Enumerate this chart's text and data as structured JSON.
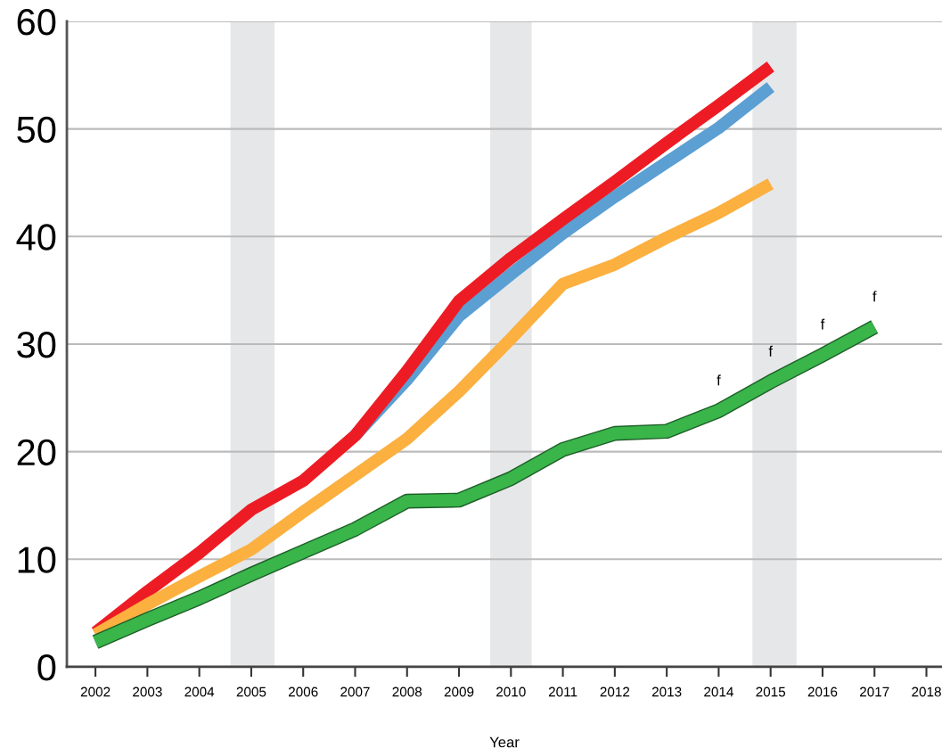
{
  "chart_data": {
    "type": "line",
    "xlabel": "Year",
    "x": [
      2002,
      2003,
      2004,
      2005,
      2006,
      2007,
      2008,
      2009,
      2010,
      2011,
      2012,
      2013,
      2014,
      2015,
      2016,
      2017
    ],
    "series": [
      {
        "color": "#5b9fd3",
        "values": [
          null,
          null,
          null,
          null,
          null,
          21.5,
          26.7,
          32.6,
          36.5,
          40.3,
          43.7,
          46.9,
          50.1,
          53.9,
          null,
          null
        ]
      },
      {
        "color": "#ed1c24",
        "values": [
          3.2,
          7.0,
          10.6,
          14.6,
          17.3,
          21.5,
          27.5,
          34.0,
          38.0,
          41.6,
          45.1,
          48.7,
          52.2,
          55.8,
          null,
          null
        ]
      },
      {
        "color": "#fbb040",
        "values": [
          3.0,
          5.8,
          8.4,
          10.9,
          14.4,
          17.8,
          21.2,
          25.6,
          30.5,
          35.6,
          37.4,
          39.9,
          42.2,
          44.9,
          null,
          null
        ]
      },
      {
        "color": "#39b54a",
        "values": [
          2.3,
          4.4,
          6.4,
          8.6,
          10.7,
          12.8,
          15.4,
          15.5,
          17.5,
          20.2,
          21.7,
          21.9,
          23.8,
          26.5,
          29.0,
          31.6
        ]
      }
    ],
    "xlim": [
      2001.45,
      2018.3
    ],
    "xticks": [
      2002,
      2003,
      2004,
      2005,
      2006,
      2007,
      2008,
      2009,
      2010,
      2011,
      2012,
      2013,
      2014,
      2015,
      2016,
      2017,
      2018
    ],
    "ylim": [
      0,
      60
    ],
    "yticks": [
      0,
      10,
      20,
      30,
      40,
      50,
      60
    ],
    "grid": "y",
    "line_style": "solid",
    "marker": "none",
    "bands": [
      {
        "axis": "x",
        "from": 2004.6,
        "to": 2005.45,
        "color": "#e6e7e9"
      },
      {
        "axis": "x",
        "from": 2009.6,
        "to": 2010.4,
        "color": "#e6e7e9"
      },
      {
        "axis": "x",
        "from": 2014.65,
        "to": 2015.5,
        "color": "#e6e7e9"
      }
    ],
    "annotations": [
      {
        "text": "f",
        "x": 2014,
        "y": 23.8
      },
      {
        "text": "f",
        "x": 2015,
        "y": 26.5
      },
      {
        "text": "f",
        "x": 2016,
        "y": 29.0
      },
      {
        "text": "f",
        "x": 2017,
        "y": 31.6
      }
    ]
  }
}
